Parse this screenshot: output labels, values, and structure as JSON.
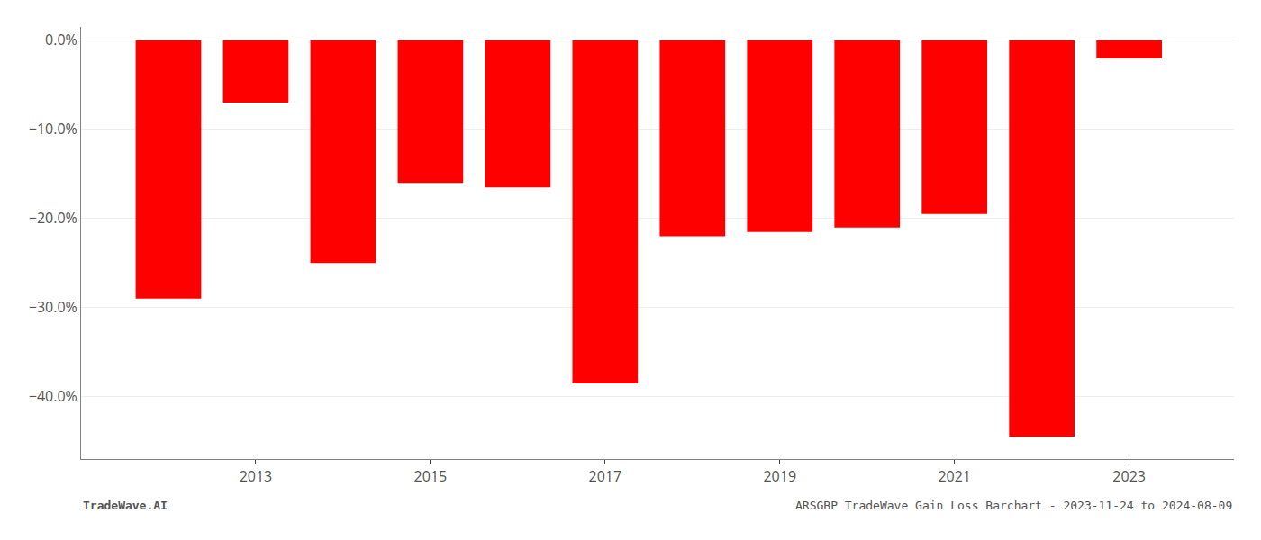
{
  "chart_data": {
    "type": "bar",
    "x": [
      2012,
      2013,
      2014,
      2015,
      2016,
      2017,
      2018,
      2019,
      2020,
      2021,
      2022,
      2023
    ],
    "values": [
      -29.0,
      -7.0,
      -25.0,
      -16.0,
      -16.5,
      -38.5,
      -22.0,
      -21.5,
      -21.0,
      -19.5,
      -44.5,
      -2.0
    ],
    "color": "#ff0000",
    "xlim": [
      2011.0,
      2024.2
    ],
    "xticks": [
      2013,
      2015,
      2017,
      2019,
      2021,
      2023
    ],
    "ylim": [
      -47,
      1.5
    ],
    "yticks": [
      {
        "value": 0.0,
        "label": "0.0%"
      },
      {
        "value": -10.0,
        "label": "−10.0%"
      },
      {
        "value": -20.0,
        "label": "−20.0%"
      },
      {
        "value": -30.0,
        "label": "−30.0%"
      },
      {
        "value": -40.0,
        "label": "−40.0%"
      }
    ],
    "grid": true,
    "annotations": [
      "TradeWave.AI",
      "ARSGBP TradeWave Gain Loss Barchart - 2023-11-24 to 2024-08-09"
    ]
  }
}
